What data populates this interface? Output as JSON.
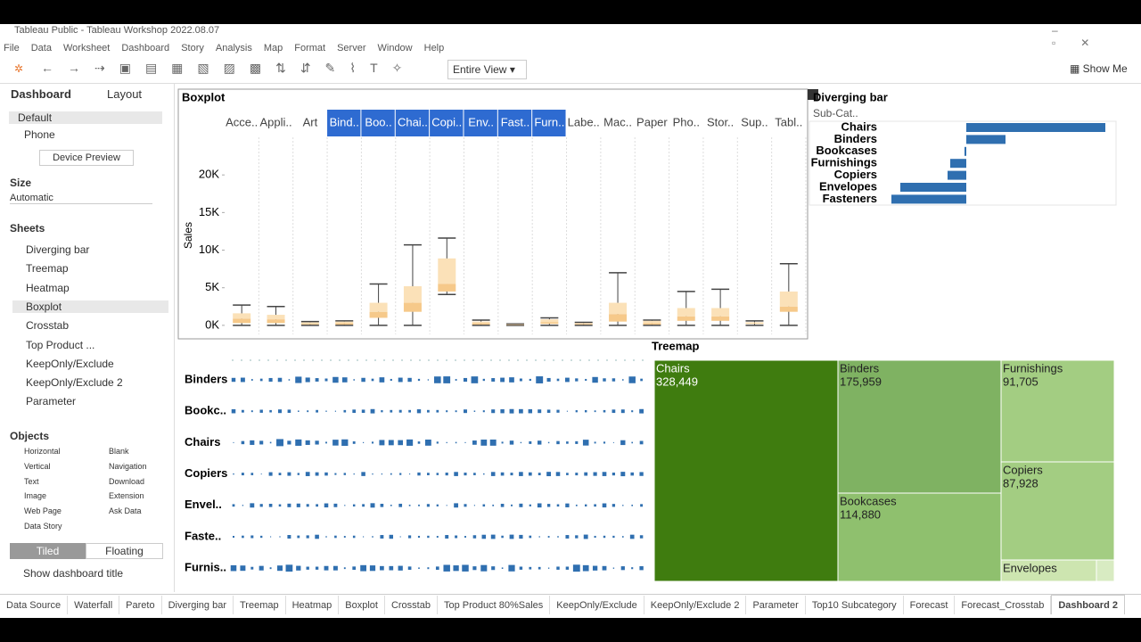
{
  "window": {
    "title": "Tableau Public - Tableau Workshop 2022.08.07"
  },
  "menu": [
    "File",
    "Data",
    "Worksheet",
    "Dashboard",
    "Story",
    "Analysis",
    "Map",
    "Format",
    "Server",
    "Window",
    "Help"
  ],
  "toolbar": {
    "fit": "Entire View",
    "show_me": "Show Me"
  },
  "sidebar": {
    "tabs": [
      "Dashboard",
      "Layout"
    ],
    "devices": [
      "Default",
      "Phone"
    ],
    "device_preview": "Device Preview",
    "size_label": "Size",
    "size_value": "Automatic",
    "sheets_label": "Sheets",
    "sheets": [
      "Diverging bar",
      "Treemap",
      "Heatmap",
      "Boxplot",
      "Crosstab",
      "Top Product ...",
      "KeepOnly/Exclude",
      "KeepOnly/Exclude 2",
      "Parameter"
    ],
    "objects_label": "Objects",
    "objects": [
      "Horizontal",
      "Blank",
      "Vertical",
      "Navigation",
      "Text",
      "Download",
      "Image",
      "Extension",
      "Web Page",
      "Ask Data",
      "Data Story"
    ],
    "layout_modes": [
      "Tiled",
      "Floating"
    ],
    "show_title": "Show dashboard title"
  },
  "boxplot": {
    "type": "box",
    "title": "Boxplot",
    "y_label": "Sales",
    "categories": [
      "Acce..",
      "Appli..",
      "Art",
      "Bind..",
      "Boo..",
      "Chai..",
      "Copi..",
      "Env..",
      "Fast..",
      "Furn..",
      "Labe..",
      "Mac..",
      "Paper",
      "Pho..",
      "Stor..",
      "Sup..",
      "Tabl.."
    ],
    "selected": [
      3,
      4,
      5,
      6,
      7,
      8,
      9
    ],
    "ylim": [
      -1200,
      25000
    ],
    "yticks": [
      {
        "value": 0,
        "label": "0K"
      },
      {
        "value": 5000,
        "label": "5K"
      },
      {
        "value": 10000,
        "label": "10K"
      },
      {
        "value": 15000,
        "label": "15K"
      },
      {
        "value": 20000,
        "label": "20K"
      }
    ],
    "low": [
      0,
      0,
      0,
      0,
      0,
      0,
      4100,
      0,
      0,
      0,
      0,
      0,
      0,
      0,
      0,
      0,
      0
    ],
    "q1": [
      300,
      300,
      100,
      100,
      1000,
      1800,
      4500,
      100,
      50,
      200,
      100,
      500,
      100,
      600,
      600,
      200,
      1800
    ],
    "median": [
      900,
      800,
      200,
      300,
      1800,
      3000,
      5500,
      300,
      100,
      400,
      200,
      1500,
      300,
      1200,
      1200,
      300,
      2500
    ],
    "q3": [
      1600,
      1400,
      400,
      500,
      3000,
      5200,
      8900,
      500,
      150,
      800,
      300,
      3000,
      600,
      2300,
      2300,
      400,
      4500
    ],
    "high": [
      2700,
      2500,
      500,
      600,
      5500,
      10700,
      11600,
      700,
      200,
      1000,
      400,
      7000,
      700,
      4500,
      4800,
      600,
      8200
    ]
  },
  "diverging": {
    "type": "bar",
    "title": "Diverging bar",
    "header": "Sub-Cat..",
    "color": "#2f6fb0",
    "categories": [
      "Chairs",
      "Binders",
      "Bookcases",
      "Furnishings",
      "Copiers",
      "Envelopes",
      "Fasteners"
    ],
    "values": [
      15600,
      4400,
      -200,
      -1800,
      -2100,
      -7400,
      -8400
    ]
  },
  "treemap": {
    "title": "Treemap",
    "items": [
      {
        "name": "Chairs",
        "value": {
          "value": 328449,
          "label": "328,449"
        }
      },
      {
        "name": "Binders",
        "value": {
          "value": 175959,
          "label": "175,959"
        }
      },
      {
        "name": "Furnishings",
        "value": {
          "value": 91705,
          "label": "91,705"
        }
      },
      {
        "name": "Copiers",
        "value": {
          "value": 87928,
          "label": "87,928"
        }
      },
      {
        "name": "Bookcases",
        "value": {
          "value": 114880,
          "label": "114,880"
        }
      },
      {
        "name": "Envelopes"
      }
    ]
  },
  "heatmap": {
    "rows": [
      "Binders",
      "Bookc..",
      "Chairs",
      "Copiers",
      "Envel..",
      "Faste..",
      "Furnis.."
    ]
  },
  "tabs": [
    "Data Source",
    "Waterfall",
    "Pareto",
    "Diverging bar",
    "Treemap",
    "Heatmap",
    "Boxplot",
    "Crosstab",
    "Top Product 80%Sales",
    "KeepOnly/Exclude",
    "KeepOnly/Exclude 2",
    "Parameter",
    "Top10 Subcategory",
    "Forecast",
    "Forecast_Crosstab",
    "Dashboard 2"
  ]
}
